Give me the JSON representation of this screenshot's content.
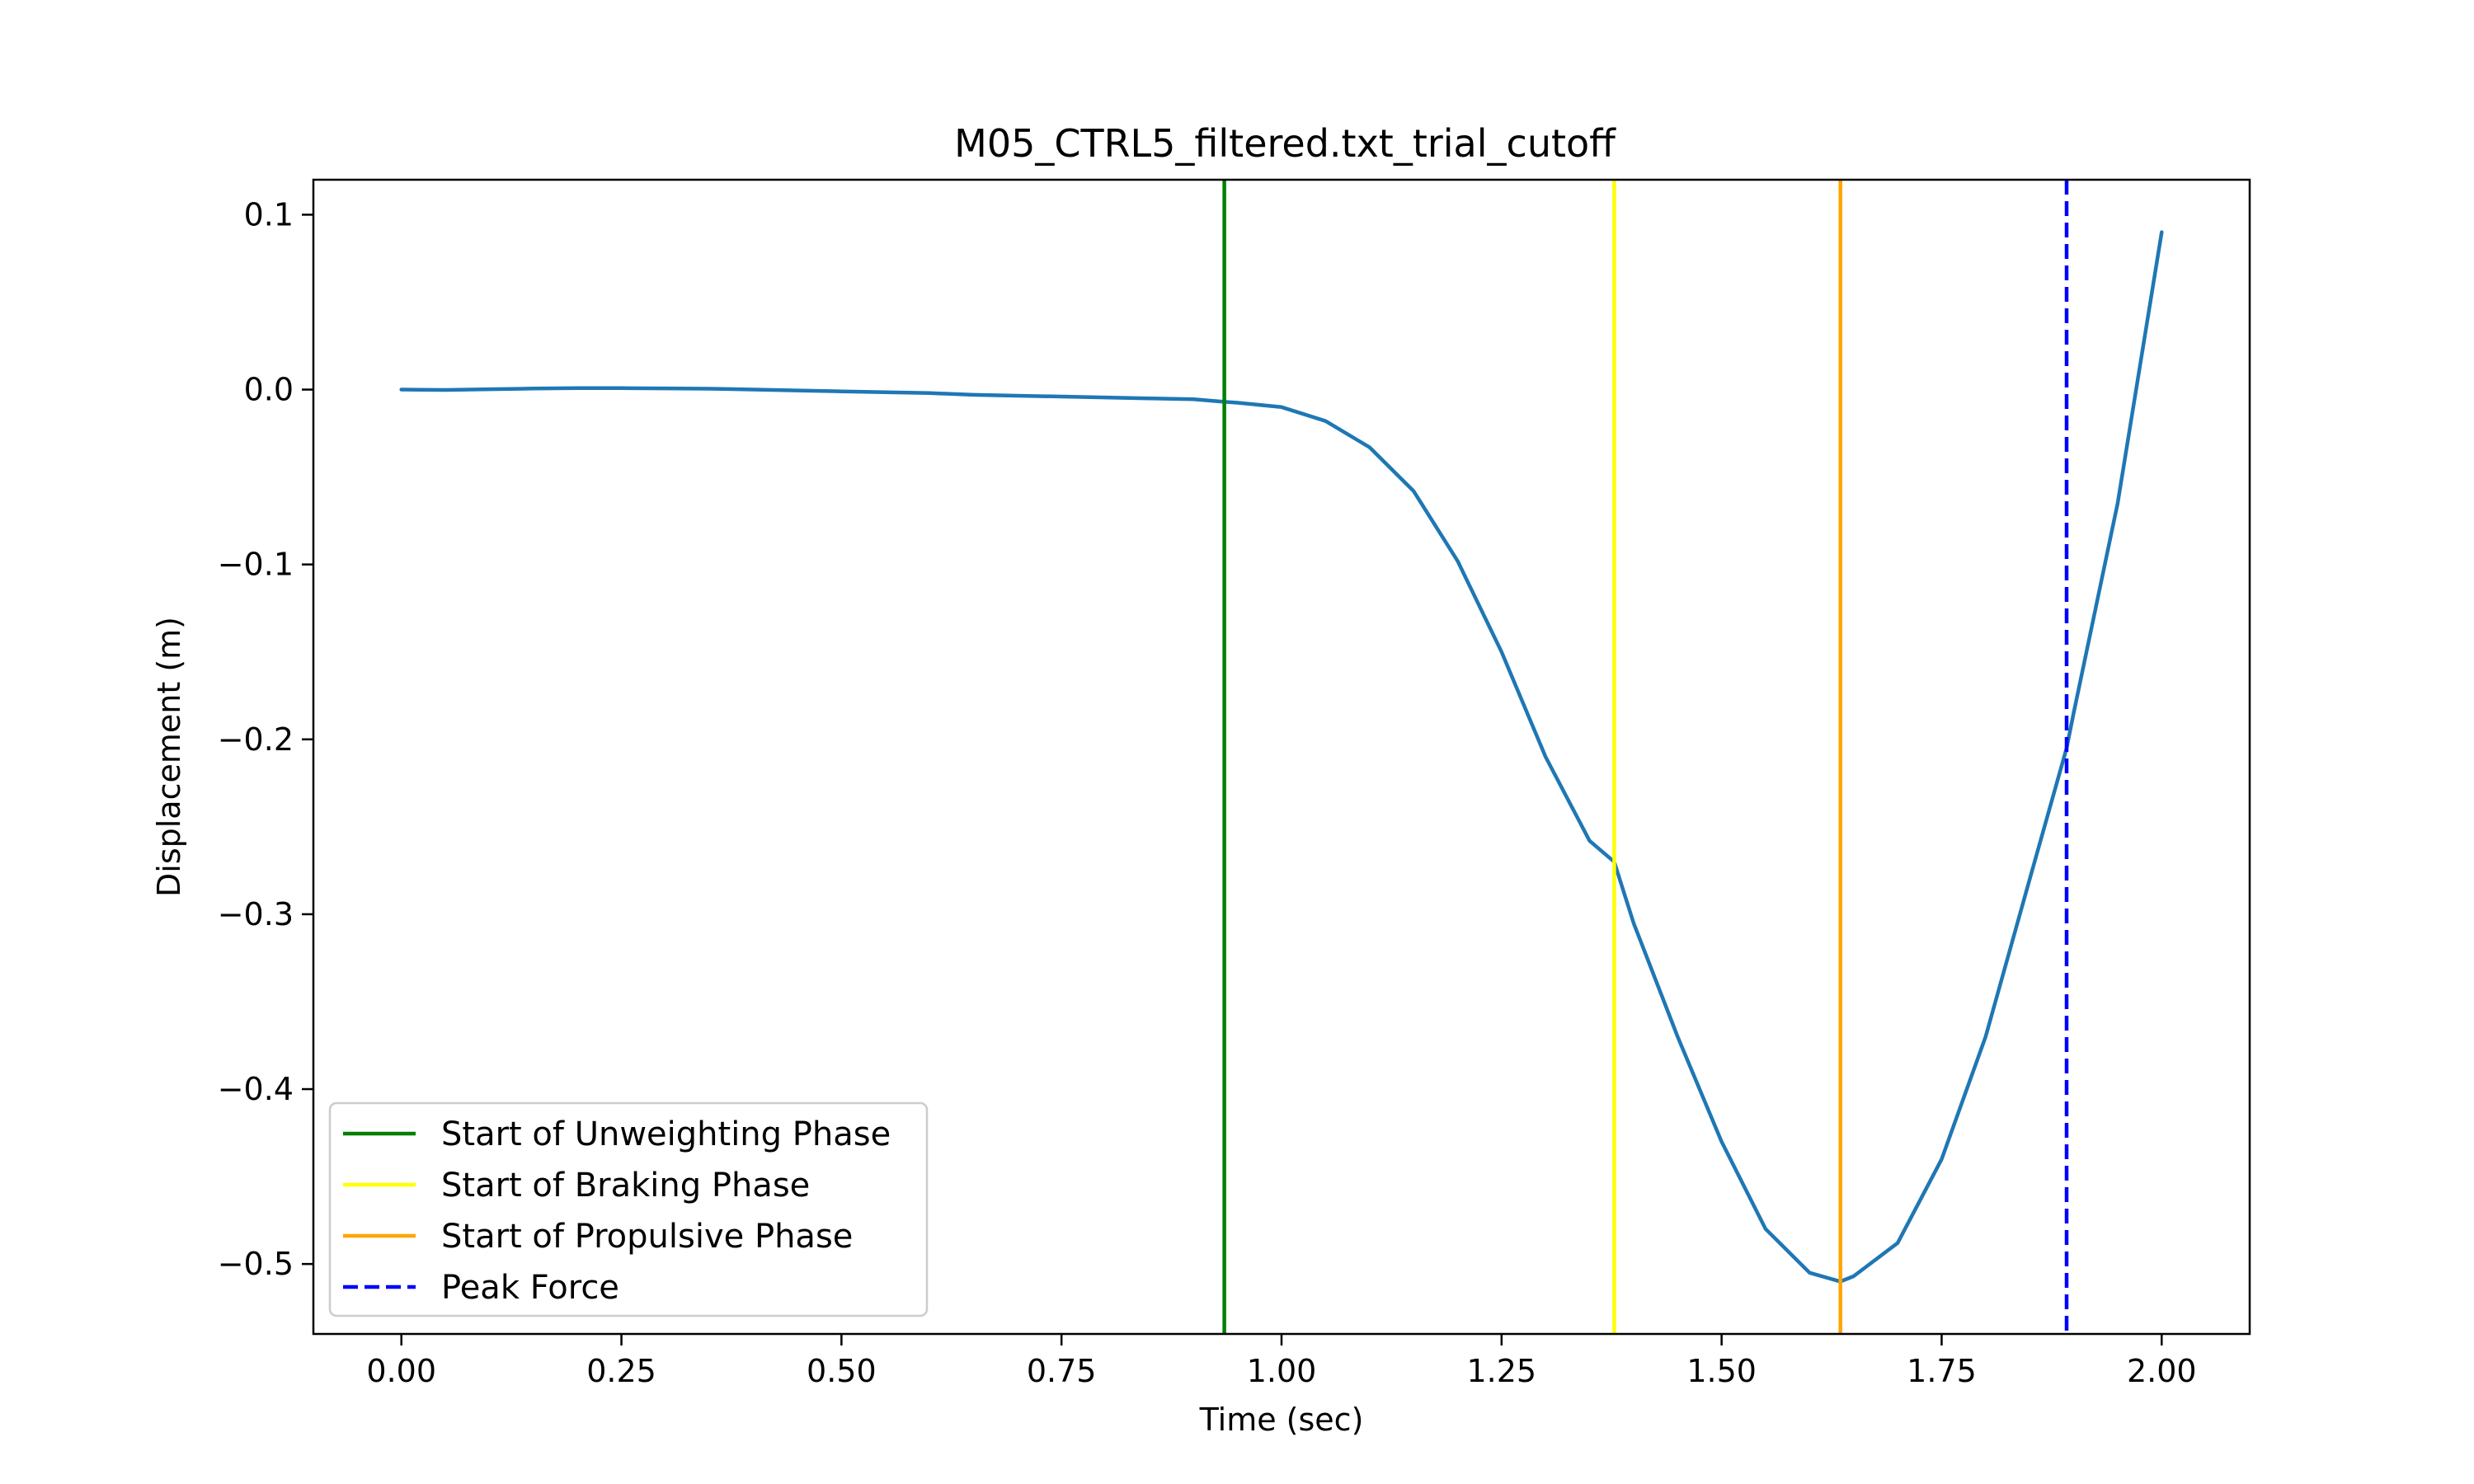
{
  "chart_data": {
    "type": "line",
    "title": "M05_CTRL5_filtered.txt_trial_cutoff",
    "xlabel": "Time (sec)",
    "ylabel": "Displacement (m)",
    "xlim": [
      -0.1,
      2.1
    ],
    "ylim": [
      -0.54,
      0.12
    ],
    "xticks": [
      0.0,
      0.25,
      0.5,
      0.75,
      1.0,
      1.25,
      1.5,
      1.75,
      2.0
    ],
    "xtick_labels": [
      "0.00",
      "0.25",
      "0.50",
      "0.75",
      "1.00",
      "1.25",
      "1.50",
      "1.75",
      "2.00"
    ],
    "yticks": [
      0.1,
      0.0,
      -0.1,
      -0.2,
      -0.3,
      -0.4,
      -0.5
    ],
    "ytick_labels": [
      "0.1",
      "0.0",
      "−0.1",
      "−0.2",
      "−0.3",
      "−0.4",
      "−0.5"
    ],
    "grid": false,
    "legend_position": "lower-left",
    "series": [
      {
        "color": "#1f77b4",
        "x": [
          0.0,
          0.05,
          0.1,
          0.15,
          0.2,
          0.25,
          0.3,
          0.35,
          0.4,
          0.45,
          0.5,
          0.55,
          0.6,
          0.65,
          0.7,
          0.75,
          0.8,
          0.85,
          0.9,
          0.935,
          0.95,
          1.0,
          1.05,
          1.1,
          1.15,
          1.2,
          1.25,
          1.3,
          1.35,
          1.378,
          1.4,
          1.45,
          1.5,
          1.55,
          1.6,
          1.635,
          1.65,
          1.7,
          1.75,
          1.8,
          1.85,
          1.892,
          1.9,
          1.95,
          2.0
        ],
        "y": [
          0.0,
          -0.0002,
          0.0002,
          0.0006,
          0.0008,
          0.0008,
          0.0007,
          0.0005,
          0.0,
          -0.0005,
          -0.001,
          -0.0015,
          -0.002,
          -0.003,
          -0.0035,
          -0.004,
          -0.0045,
          -0.005,
          -0.0055,
          -0.007,
          -0.0075,
          -0.01,
          -0.018,
          -0.033,
          -0.058,
          -0.098,
          -0.15,
          -0.21,
          -0.258,
          -0.27,
          -0.305,
          -0.37,
          -0.43,
          -0.48,
          -0.505,
          -0.51,
          -0.507,
          -0.488,
          -0.44,
          -0.37,
          -0.28,
          -0.205,
          -0.185,
          -0.065,
          0.09
        ]
      }
    ],
    "vlines": [
      {
        "x": 0.935,
        "color": "#008000",
        "style": "solid"
      },
      {
        "x": 1.378,
        "color": "#ffff00",
        "style": "solid"
      },
      {
        "x": 1.635,
        "color": "#ffa500",
        "style": "solid"
      },
      {
        "x": 1.892,
        "color": "#0000ff",
        "style": "dashed"
      }
    ],
    "legend": [
      {
        "label": "Start of Unweighting Phase",
        "color": "#008000",
        "style": "solid"
      },
      {
        "label": "Start of Braking Phase",
        "color": "#ffff00",
        "style": "solid"
      },
      {
        "label": "Start of Propulsive Phase",
        "color": "#ffa500",
        "style": "solid"
      },
      {
        "label": "Peak Force",
        "color": "#0000ff",
        "style": "dashed"
      }
    ]
  }
}
